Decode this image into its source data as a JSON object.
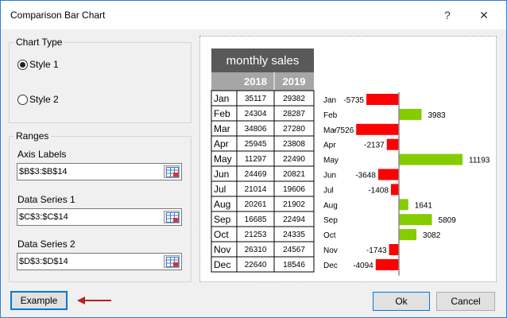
{
  "window": {
    "title": "Comparison Bar Chart",
    "help": "?",
    "close": "✕"
  },
  "chart_type": {
    "label": "Chart Type",
    "style1": "Style 1",
    "style2": "Style 2",
    "selected": "Style 1"
  },
  "ranges": {
    "label": "Ranges",
    "axis_labels": {
      "label": "Axis Labels",
      "value": "$B$3:$B$14"
    },
    "series1": {
      "label": "Data Series 1",
      "value": "$C$3:$C$14"
    },
    "series2": {
      "label": "Data Series 2",
      "value": "$D$3:$D$14"
    }
  },
  "buttons": {
    "example": "Example",
    "ok": "Ok",
    "cancel": "Cancel"
  },
  "colors": {
    "negative": "#ff0000",
    "positive": "#84cc00",
    "header_dark": "#595959",
    "header_mid": "#a6a6a6"
  },
  "table": {
    "title": "monthly sales",
    "headers": [
      "2018",
      "2019"
    ],
    "rows": [
      [
        "Jan",
        35117,
        29382
      ],
      [
        "Feb",
        24304,
        28287
      ],
      [
        "Mar",
        34806,
        27280
      ],
      [
        "Apr",
        25945,
        23808
      ],
      [
        "May",
        11297,
        22490
      ],
      [
        "Jun",
        24469,
        20821
      ],
      [
        "Jul",
        21014,
        19606
      ],
      [
        "Aug",
        20261,
        21902
      ],
      [
        "Sep",
        16685,
        22494
      ],
      [
        "Oct",
        21253,
        24335
      ],
      [
        "Nov",
        26310,
        24567
      ],
      [
        "Dec",
        22640,
        18546
      ]
    ]
  },
  "chart_data": {
    "type": "bar",
    "categories": [
      "Jan",
      "Feb",
      "Mar",
      "Apr",
      "May",
      "Jun",
      "Jul",
      "Aug",
      "Sep",
      "Oct",
      "Nov",
      "Dec"
    ],
    "values": [
      -5735,
      3983,
      -7526,
      -2137,
      11193,
      -3648,
      -1408,
      1641,
      5809,
      3082,
      -1743,
      -4094
    ]
  }
}
